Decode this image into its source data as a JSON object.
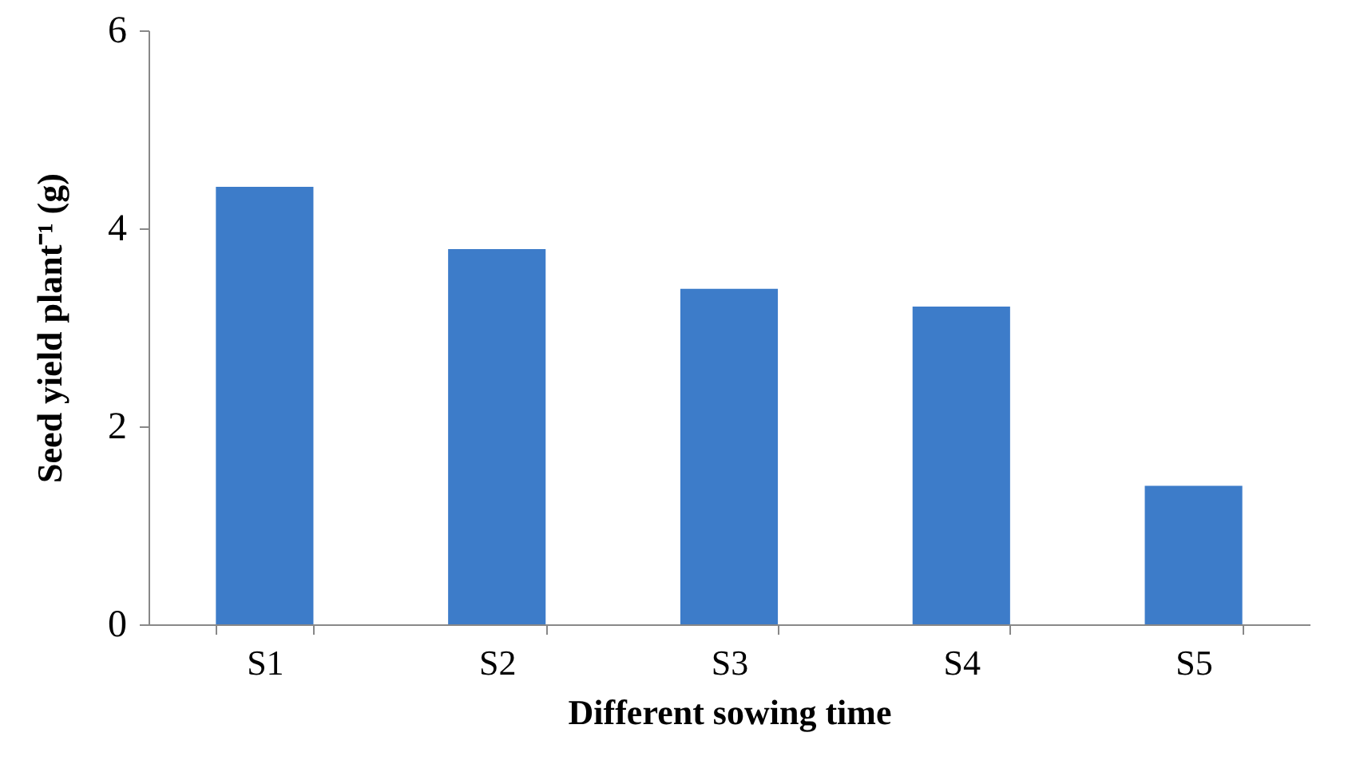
{
  "chart_data": {
    "type": "bar",
    "xlabel": "Different sowing time",
    "ylabel": "Seed yield plant⁻¹ (g)",
    "categories": [
      "S1",
      "S2",
      "S3",
      "S4",
      "S5"
    ],
    "values": [
      4.42,
      3.79,
      3.39,
      3.21,
      1.4
    ],
    "color": "#3d7cc9",
    "ylim": [
      0,
      6
    ],
    "yticks": [
      0,
      2,
      4,
      6
    ],
    "grid": false
  }
}
